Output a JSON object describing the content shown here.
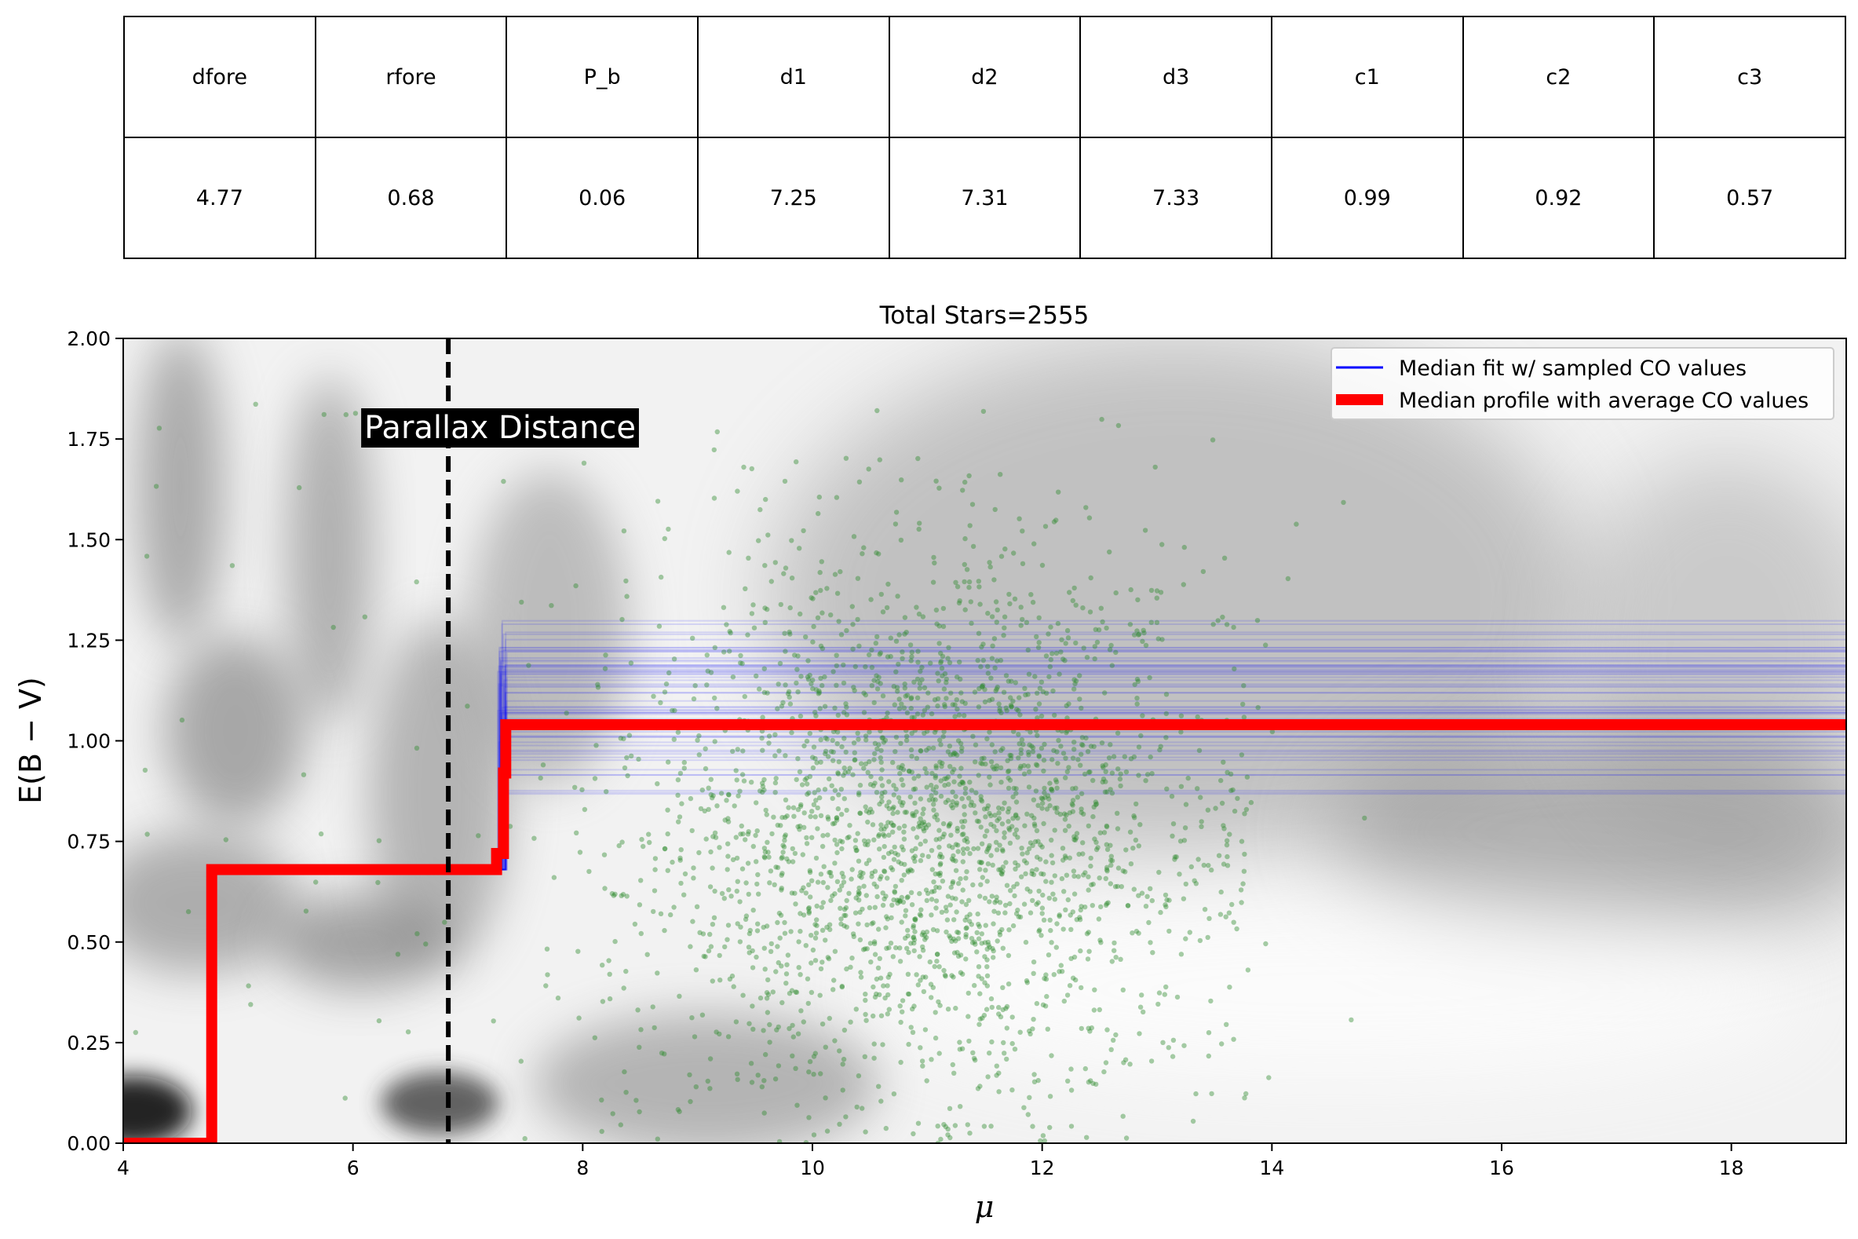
{
  "table": {
    "headers": [
      "dfore",
      "rfore",
      "P_b",
      "d1",
      "d2",
      "d3",
      "c1",
      "c2",
      "c3"
    ],
    "values": [
      "4.77",
      "0.68",
      "0.06",
      "7.25",
      "7.31",
      "7.33",
      "0.99",
      "0.92",
      "0.57"
    ]
  },
  "chart_data": {
    "type": "scatter",
    "title": "Total Stars=2555",
    "xlabel": "μ",
    "ylabel": "E(B − V)",
    "xlim": [
      4,
      19
    ],
    "ylim": [
      0,
      2
    ],
    "x_ticks": [
      4,
      6,
      8,
      10,
      12,
      14,
      16,
      18
    ],
    "y_ticks": [
      "0.00",
      "0.25",
      "0.50",
      "0.75",
      "1.00",
      "1.25",
      "1.50",
      "1.75",
      "2.00"
    ],
    "legend_position": "top-right",
    "legend": [
      "Median fit w/ sampled CO values",
      "Median profile with average CO values"
    ],
    "annotation": {
      "text": "Parallax Distance",
      "x": 6.83
    },
    "colors": {
      "median_profile": "#ff0000",
      "sampled_fits": "#0000ff",
      "stars": "#2e8b2e",
      "parallax_line": "#000000"
    },
    "median_profile": {
      "x": [
        4,
        4.77,
        4.77,
        7.25,
        7.25,
        7.31,
        7.31,
        7.33,
        7.33,
        19
      ],
      "y": [
        0,
        0,
        0.68,
        0.68,
        0.72,
        0.72,
        0.92,
        0.92,
        1.04,
        1.04
      ]
    },
    "sampled_fits": {
      "step_x": 7.3,
      "pre_step_y": 0.68,
      "y_min": 0.86,
      "y_max": 1.3,
      "count": 60
    },
    "stars": {
      "count": 2555,
      "core_x_range": [
        7.3,
        13.8
      ],
      "core_x_center": 11.0,
      "y_range": [
        0.0,
        1.85
      ]
    }
  }
}
